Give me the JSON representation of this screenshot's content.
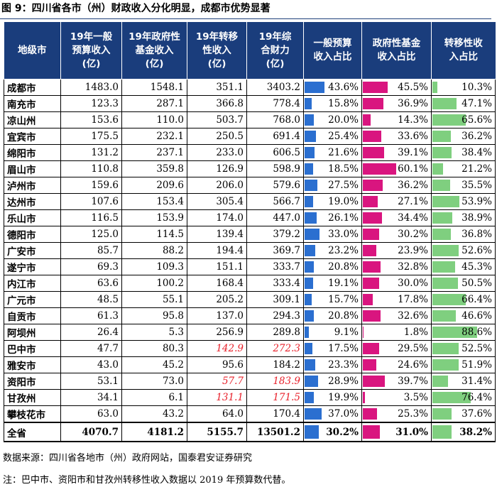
{
  "title": "图 9：四川省各市（州）财政收入分化明显，成都市优势显著",
  "headers": [
    "地级市",
    "19年一般预算收入(亿)",
    "19年政府性基金收入(亿)",
    "19年转移性收入(亿)",
    "19年综合财力(亿)",
    "一般预算收入占比",
    "政府性基金收入占比",
    "转移性收入占比"
  ],
  "header_lines": [
    [
      "地级市"
    ],
    [
      "19年一般",
      "预算收入",
      "(亿)"
    ],
    [
      "19年政府性",
      "基金收入",
      "(亿)"
    ],
    [
      "19年转移",
      "性收入",
      "(亿)"
    ],
    [
      "19年综",
      "合财力",
      "(亿)"
    ],
    [
      "一般预算",
      "收入占比"
    ],
    [
      "政府性基金",
      "收入占比"
    ],
    [
      "转移性收",
      "入占比"
    ]
  ],
  "colors": {
    "header_bg": "#1a3d7c",
    "bar1": "#2b6fd0",
    "bar2": "#d9157f",
    "bar3": "#7fcf7f",
    "estimate_text": "#e8202a"
  },
  "rows": [
    {
      "city": "成都市",
      "general": "1483.0",
      "fund": "1548.1",
      "transfer": "351.1",
      "total": "3403.2",
      "p1": "43.6%",
      "p2": "45.5%",
      "p3": "10.3%",
      "v1": 43.6,
      "v2": 45.5,
      "v3": 10.3,
      "est": false
    },
    {
      "city": "南充市",
      "general": "123.3",
      "fund": "287.1",
      "transfer": "366.8",
      "total": "778.4",
      "p1": "15.8%",
      "p2": "36.9%",
      "p3": "47.1%",
      "v1": 15.8,
      "v2": 36.9,
      "v3": 47.1,
      "est": false
    },
    {
      "city": "凉山州",
      "general": "153.6",
      "fund": "110.0",
      "transfer": "503.7",
      "total": "768.0",
      "p1": "20.0%",
      "p2": "14.3%",
      "p3": "65.6%",
      "v1": 20.0,
      "v2": 14.3,
      "v3": 65.6,
      "est": false
    },
    {
      "city": "宜宾市",
      "general": "175.5",
      "fund": "232.1",
      "transfer": "250.5",
      "total": "691.4",
      "p1": "25.4%",
      "p2": "33.6%",
      "p3": "36.2%",
      "v1": 25.4,
      "v2": 33.6,
      "v3": 36.2,
      "est": false
    },
    {
      "city": "绵阳市",
      "general": "131.2",
      "fund": "237.1",
      "transfer": "233.0",
      "total": "606.5",
      "p1": "21.6%",
      "p2": "39.1%",
      "p3": "38.4%",
      "v1": 21.6,
      "v2": 39.1,
      "v3": 38.4,
      "est": false
    },
    {
      "city": "眉山市",
      "general": "110.8",
      "fund": "359.8",
      "transfer": "126.9",
      "total": "598.9",
      "p1": "18.5%",
      "p2": "60.1%",
      "p3": "21.2%",
      "v1": 18.5,
      "v2": 60.1,
      "v3": 21.2,
      "est": false
    },
    {
      "city": "泸州市",
      "general": "159.6",
      "fund": "209.6",
      "transfer": "206.0",
      "total": "579.6",
      "p1": "27.5%",
      "p2": "36.2%",
      "p3": "35.5%",
      "v1": 27.5,
      "v2": 36.2,
      "v3": 35.5,
      "est": false
    },
    {
      "city": "达州市",
      "general": "107.6",
      "fund": "153.4",
      "transfer": "305.4",
      "total": "566.7",
      "p1": "19.0%",
      "p2": "27.1%",
      "p3": "53.9%",
      "v1": 19.0,
      "v2": 27.1,
      "v3": 53.9,
      "est": false
    },
    {
      "city": "乐山市",
      "general": "116.5",
      "fund": "153.9",
      "transfer": "174.0",
      "total": "447.0",
      "p1": "26.1%",
      "p2": "34.4%",
      "p3": "38.9%",
      "v1": 26.1,
      "v2": 34.4,
      "v3": 38.9,
      "est": false
    },
    {
      "city": "德阳市",
      "general": "125.0",
      "fund": "114.5",
      "transfer": "139.4",
      "total": "379.2",
      "p1": "33.0%",
      "p2": "30.2%",
      "p3": "36.8%",
      "v1": 33.0,
      "v2": 30.2,
      "v3": 36.8,
      "est": false
    },
    {
      "city": "广安市",
      "general": "85.7",
      "fund": "88.2",
      "transfer": "194.4",
      "total": "369.7",
      "p1": "23.2%",
      "p2": "23.9%",
      "p3": "52.6%",
      "v1": 23.2,
      "v2": 23.9,
      "v3": 52.6,
      "est": false
    },
    {
      "city": "遂宁市",
      "general": "69.3",
      "fund": "109.3",
      "transfer": "151.1",
      "total": "333.7",
      "p1": "20.8%",
      "p2": "32.8%",
      "p3": "45.3%",
      "v1": 20.8,
      "v2": 32.8,
      "v3": 45.3,
      "est": false
    },
    {
      "city": "内江市",
      "general": "63.6",
      "fund": "100.2",
      "transfer": "168.4",
      "total": "333.4",
      "p1": "19.1%",
      "p2": "30.0%",
      "p3": "50.5%",
      "v1": 19.1,
      "v2": 30.0,
      "v3": 50.5,
      "est": false
    },
    {
      "city": "广元市",
      "general": "48.5",
      "fund": "55.1",
      "transfer": "205.2",
      "total": "309.1",
      "p1": "15.7%",
      "p2": "17.8%",
      "p3": "66.4%",
      "v1": 15.7,
      "v2": 17.8,
      "v3": 66.4,
      "est": false
    },
    {
      "city": "自贡市",
      "general": "61.3",
      "fund": "95.8",
      "transfer": "137.0",
      "total": "294.3",
      "p1": "20.8%",
      "p2": "32.6%",
      "p3": "46.6%",
      "v1": 20.8,
      "v2": 32.6,
      "v3": 46.6,
      "est": false
    },
    {
      "city": "阿坝州",
      "general": "26.4",
      "fund": "5.3",
      "transfer": "256.9",
      "total": "289.8",
      "p1": "9.1%",
      "p2": "1.8%",
      "p3": "88.6%",
      "v1": 9.1,
      "v2": 1.8,
      "v3": 88.6,
      "est": false
    },
    {
      "city": "巴中市",
      "general": "47.7",
      "fund": "80.3",
      "transfer": "142.9",
      "total": "272.3",
      "p1": "17.5%",
      "p2": "29.5%",
      "p3": "52.5%",
      "v1": 17.5,
      "v2": 29.5,
      "v3": 52.5,
      "est": true
    },
    {
      "city": "雅安市",
      "general": "43.0",
      "fund": "45.2",
      "transfer": "95.6",
      "total": "184.2",
      "p1": "23.3%",
      "p2": "24.6%",
      "p3": "51.9%",
      "v1": 23.3,
      "v2": 24.6,
      "v3": 51.9,
      "est": false
    },
    {
      "city": "资阳市",
      "general": "53.1",
      "fund": "73.0",
      "transfer": "57.7",
      "total": "183.9",
      "p1": "28.9%",
      "p2": "39.7%",
      "p3": "31.4%",
      "v1": 28.9,
      "v2": 39.7,
      "v3": 31.4,
      "est": true
    },
    {
      "city": "甘孜州",
      "general": "34.1",
      "fund": "6.1",
      "transfer": "131.1",
      "total": "171.5",
      "p1": "19.9%",
      "p2": "3.5%",
      "p3": "76.4%",
      "v1": 19.9,
      "v2": 3.5,
      "v3": 76.4,
      "est": true
    },
    {
      "city": "攀枝花市",
      "general": "63.0",
      "fund": "43.2",
      "transfer": "64.0",
      "total": "170.4",
      "p1": "37.0%",
      "p2": "25.3%",
      "p3": "37.6%",
      "v1": 37.0,
      "v2": 25.3,
      "v3": 37.6,
      "est": false
    }
  ],
  "total_row": {
    "city": "全省",
    "general": "4070.7",
    "fund": "4181.2",
    "transfer": "5155.7",
    "total": "13501.2",
    "p1": "30.2%",
    "p2": "31.0%",
    "p3": "38.2%",
    "v1": 30.2,
    "v2": 31.0,
    "v3": 38.2
  },
  "source": "数据来源：四川省各地市（州）政府网站，国泰君安证券研究",
  "note": "注：巴中市、资阳市和甘孜州转移性收入数据以 2019 年预算数代替。"
}
